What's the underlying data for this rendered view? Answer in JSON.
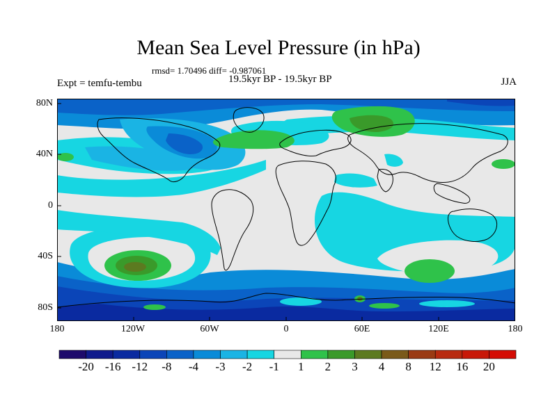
{
  "title": "Mean Sea Level Pressure (in hPa)",
  "stats": "rmsd= 1.70496 diff= -0.987061",
  "period": "19.5kyr BP - 19.5kyr BP",
  "experiment": "Expt = temfu-tembu",
  "season": "JJA",
  "axes": {
    "y_ticks": [
      "80N",
      "40N",
      "0",
      "40S",
      "80S"
    ],
    "x_ticks": [
      "180",
      "120W",
      "60W",
      "0",
      "60E",
      "120E",
      "180"
    ]
  },
  "colorbar": {
    "colors": [
      "#1d0a6b",
      "#0f1a8c",
      "#0a2aa0",
      "#0b45b8",
      "#0a62c8",
      "#0a8bd8",
      "#1ab4e4",
      "#17d6e2",
      "#e8e8e8",
      "#2fc24a",
      "#3a9a2a",
      "#5c7a20",
      "#7a5a1a",
      "#9a3a14",
      "#b82a10",
      "#c81808",
      "#d40c04"
    ],
    "labels": [
      "-20",
      "-16",
      "-12",
      "-8",
      "-4",
      "-3",
      "-2",
      "-1",
      "1",
      "2",
      "3",
      "4",
      "8",
      "12",
      "16",
      "20"
    ]
  },
  "map_colors": {
    "neutral": "#e8e8e8",
    "cyan": "#17d6e2",
    "light_blue": "#1ab4e4",
    "mid_blue": "#0a8bd8",
    "blue": "#0a62c8",
    "dark_blue": "#0b45b8",
    "navy": "#0a2aa0",
    "green": "#2fc24a",
    "dark_green": "#3a9a2a",
    "olive": "#5c7a20",
    "coast": "#000000"
  }
}
